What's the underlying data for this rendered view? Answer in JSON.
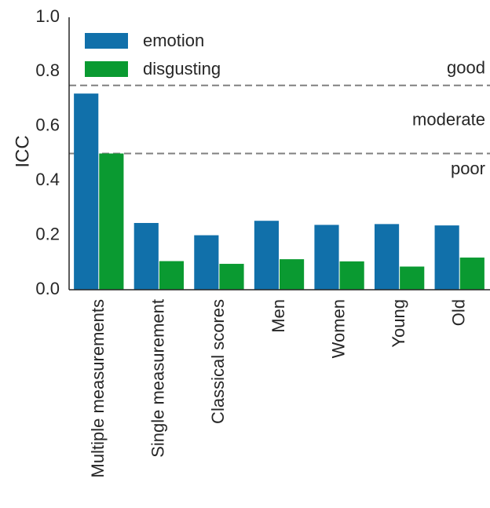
{
  "chart_data": {
    "type": "bar",
    "title": "",
    "xlabel": "",
    "ylabel": "ICC",
    "ylim": [
      0,
      1.0
    ],
    "yticks": [
      "0.0",
      "0.2",
      "0.4",
      "0.6",
      "0.8",
      "1.0"
    ],
    "grid": false,
    "legend_position": "top-left",
    "categories": [
      "Multiple measurements",
      "Single measurement",
      "Classical scores",
      "Men",
      "Women",
      "Young",
      "Old"
    ],
    "series": [
      {
        "name": "emotion",
        "color": "#1170aa",
        "values": [
          0.72,
          0.245,
          0.2,
          0.253,
          0.238,
          0.241,
          0.236
        ]
      },
      {
        "name": "disgusting",
        "color": "#0a9a31",
        "values": [
          0.5,
          0.105,
          0.095,
          0.112,
          0.104,
          0.085,
          0.118
        ]
      }
    ],
    "reference_lines": [
      {
        "value": 0.75,
        "color": "#808080"
      },
      {
        "value": 0.5,
        "color": "#808080"
      }
    ],
    "annotations": [
      {
        "text": "good",
        "y": 0.81
      },
      {
        "text": "moderate",
        "y": 0.62
      },
      {
        "text": "poor",
        "y": 0.44
      }
    ]
  }
}
